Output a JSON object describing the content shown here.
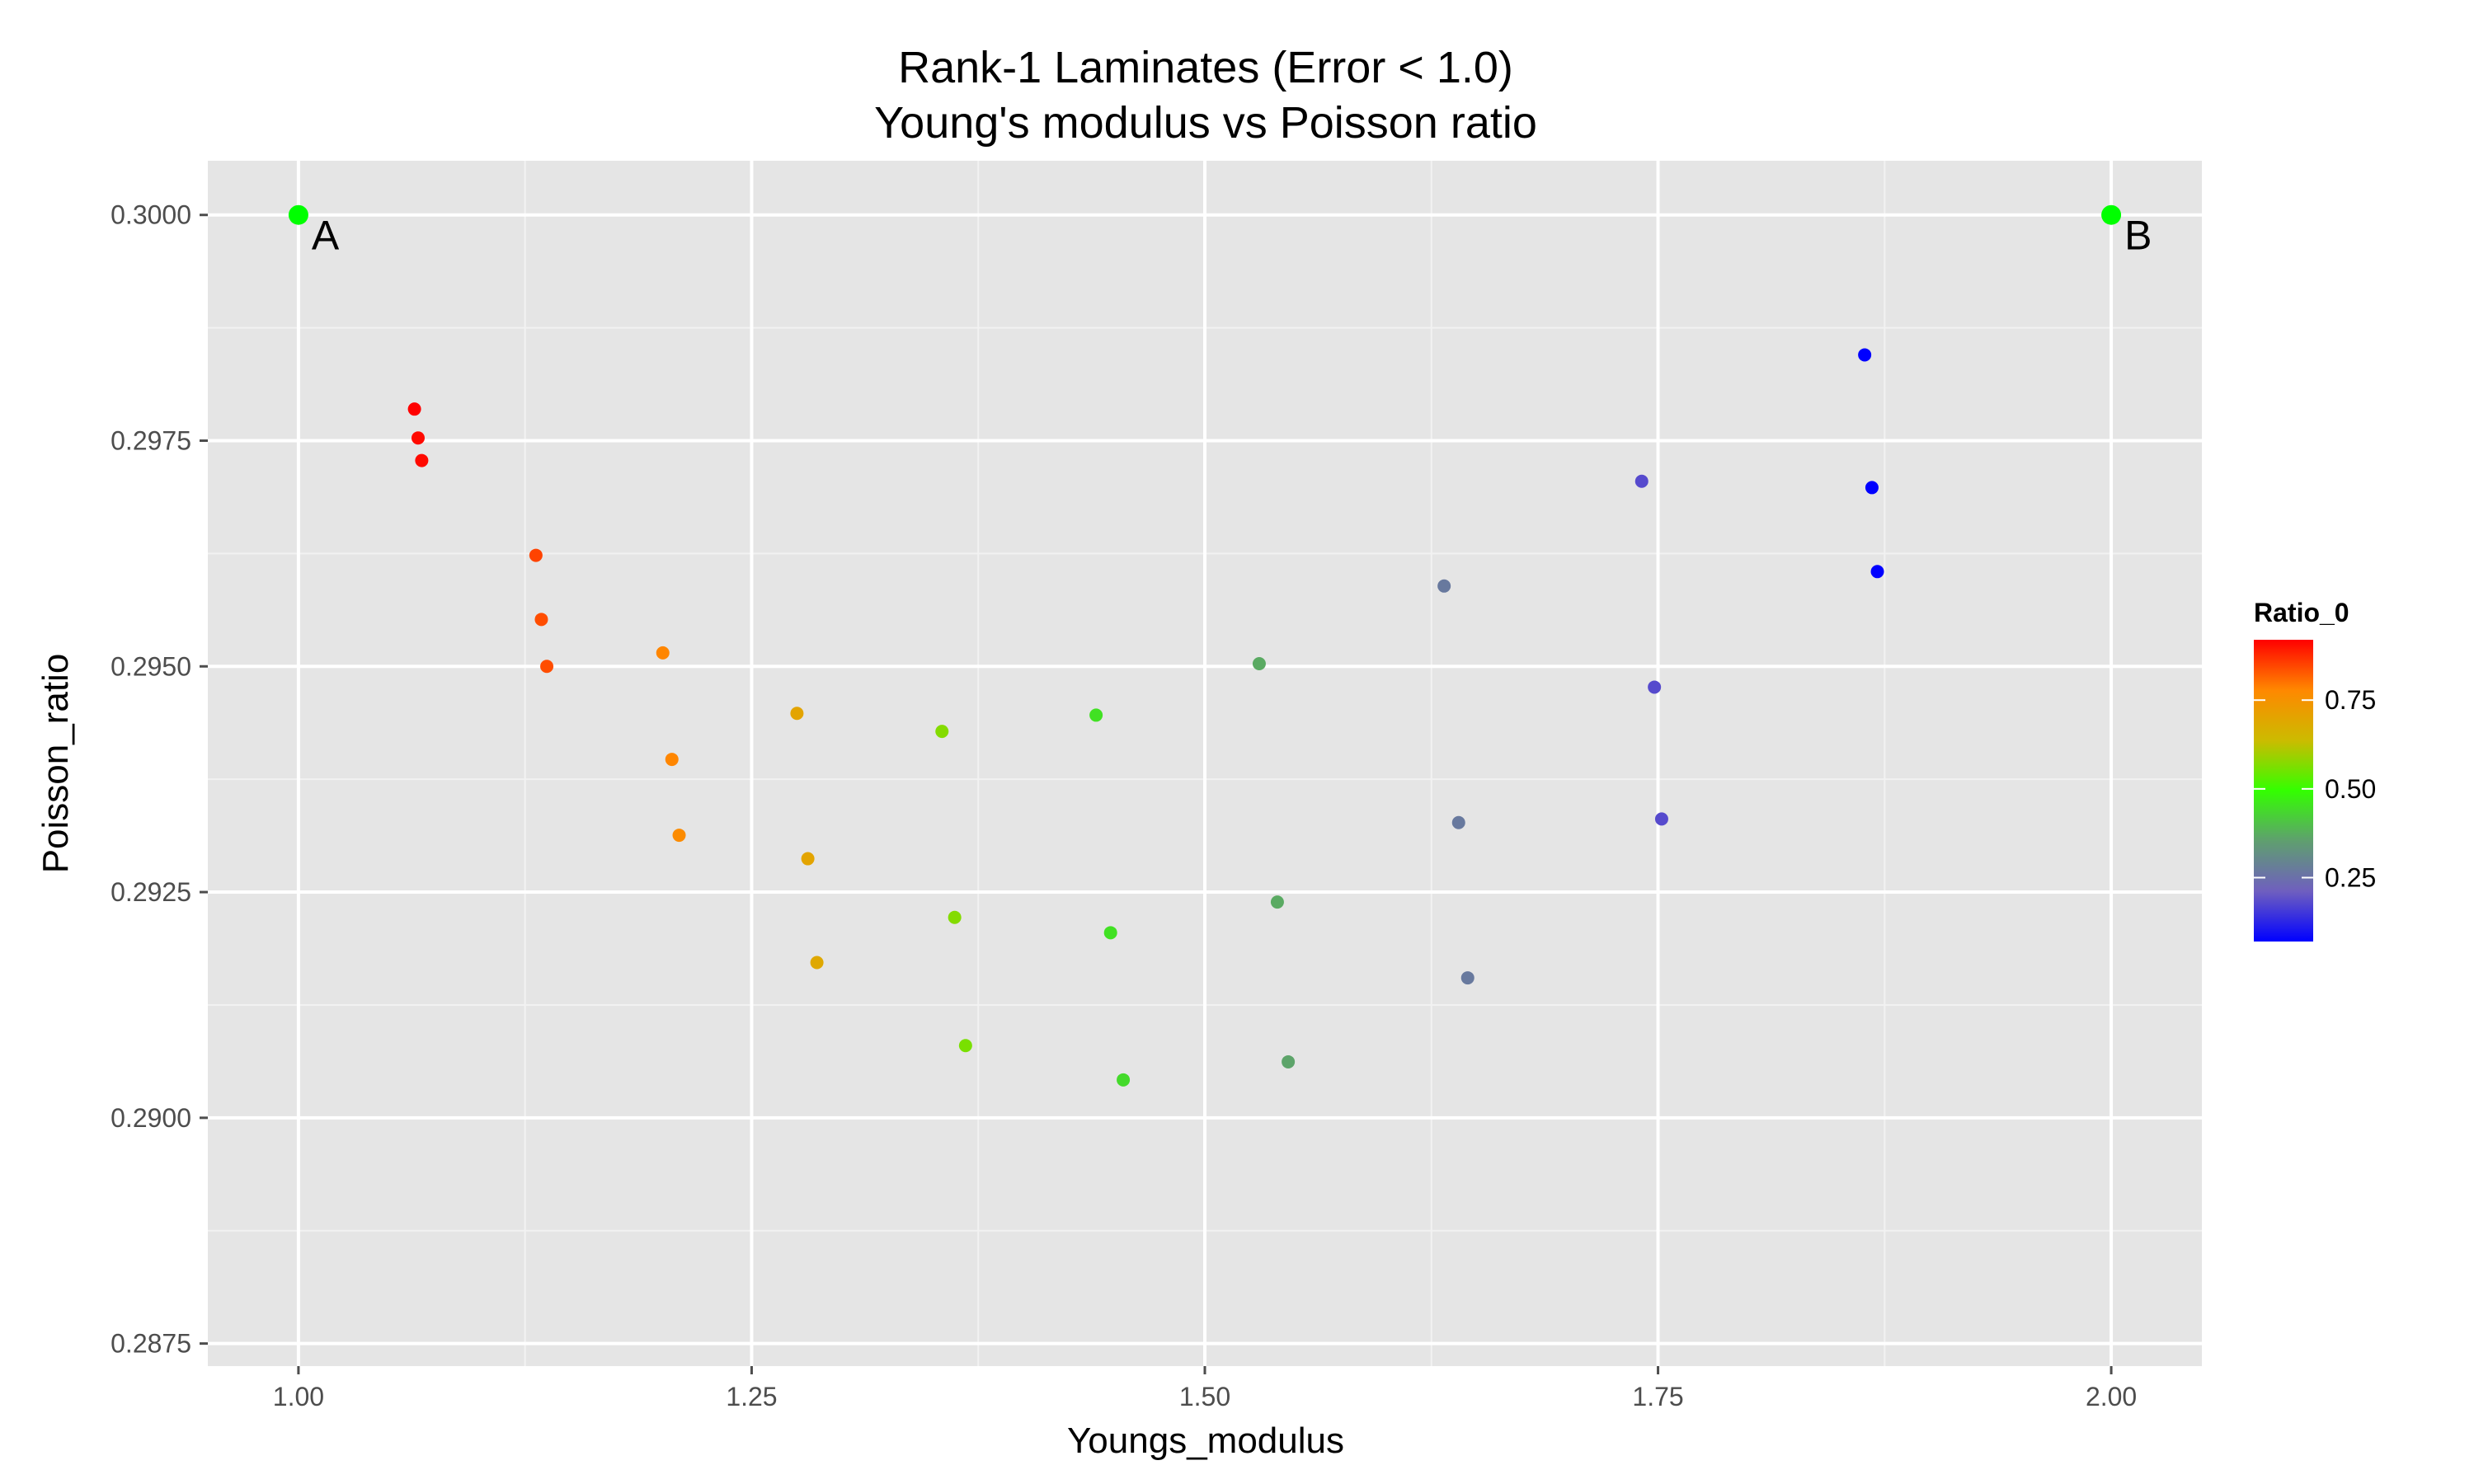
{
  "chart_data": {
    "type": "scatter",
    "title": "Rank-1 Laminates (Error < 1.0)",
    "subtitle": "Young's modulus vs Poisson ratio",
    "xlabel": "Youngs_modulus",
    "ylabel": "Poisson_ratio",
    "xlim": [
      0.95,
      2.05
    ],
    "ylim": [
      0.28725,
      0.3006
    ],
    "x_ticks": [
      "1.00",
      "1.25",
      "1.50",
      "1.75",
      "2.00"
    ],
    "y_ticks": [
      "0.2875",
      "0.2900",
      "0.2925",
      "0.2950",
      "0.2975",
      "0.3000"
    ],
    "grid": true,
    "legend": {
      "title": "Ratio_0",
      "placement": "right",
      "ticks": [
        "0.75",
        "0.50",
        "0.25"
      ],
      "range": [
        0.07,
        0.92
      ],
      "gradient": [
        "#0000ff",
        "#6f5fbf",
        "#5f9f6f",
        "#33ff00",
        "#ccbb00",
        "#ff8800",
        "#ff0000"
      ]
    },
    "annotations": [
      {
        "label": "A",
        "x": 1.0,
        "y": 0.3,
        "color": "#00ff00"
      },
      {
        "label": "B",
        "x": 2.0,
        "y": 0.3,
        "color": "#00ff00"
      }
    ],
    "points": [
      {
        "x": 1.064,
        "y": 0.29785,
        "ratio": 0.92
      },
      {
        "x": 1.066,
        "y": 0.29753,
        "ratio": 0.91
      },
      {
        "x": 1.068,
        "y": 0.29728,
        "ratio": 0.91
      },
      {
        "x": 1.131,
        "y": 0.29623,
        "ratio": 0.85
      },
      {
        "x": 1.134,
        "y": 0.29552,
        "ratio": 0.84
      },
      {
        "x": 1.137,
        "y": 0.295,
        "ratio": 0.84
      },
      {
        "x": 1.201,
        "y": 0.29515,
        "ratio": 0.78
      },
      {
        "x": 1.206,
        "y": 0.29397,
        "ratio": 0.78
      },
      {
        "x": 1.21,
        "y": 0.29313,
        "ratio": 0.77
      },
      {
        "x": 1.275,
        "y": 0.29448,
        "ratio": 0.7
      },
      {
        "x": 1.281,
        "y": 0.29287,
        "ratio": 0.7
      },
      {
        "x": 1.286,
        "y": 0.29172,
        "ratio": 0.69
      },
      {
        "x": 1.355,
        "y": 0.29428,
        "ratio": 0.57
      },
      {
        "x": 1.362,
        "y": 0.29222,
        "ratio": 0.57
      },
      {
        "x": 1.368,
        "y": 0.2908,
        "ratio": 0.56
      },
      {
        "x": 1.44,
        "y": 0.29446,
        "ratio": 0.45
      },
      {
        "x": 1.448,
        "y": 0.29205,
        "ratio": 0.45
      },
      {
        "x": 1.455,
        "y": 0.29042,
        "ratio": 0.44
      },
      {
        "x": 1.53,
        "y": 0.29503,
        "ratio": 0.37
      },
      {
        "x": 1.54,
        "y": 0.29239,
        "ratio": 0.37
      },
      {
        "x": 1.546,
        "y": 0.29062,
        "ratio": 0.36
      },
      {
        "x": 1.632,
        "y": 0.29589,
        "ratio": 0.27
      },
      {
        "x": 1.64,
        "y": 0.29327,
        "ratio": 0.27
      },
      {
        "x": 1.645,
        "y": 0.29155,
        "ratio": 0.27
      },
      {
        "x": 1.741,
        "y": 0.29705,
        "ratio": 0.18
      },
      {
        "x": 1.748,
        "y": 0.29477,
        "ratio": 0.18
      },
      {
        "x": 1.752,
        "y": 0.29331,
        "ratio": 0.18
      },
      {
        "x": 1.864,
        "y": 0.29845,
        "ratio": 0.07
      },
      {
        "x": 1.868,
        "y": 0.29698,
        "ratio": 0.07
      },
      {
        "x": 1.871,
        "y": 0.29605,
        "ratio": 0.07
      }
    ]
  }
}
